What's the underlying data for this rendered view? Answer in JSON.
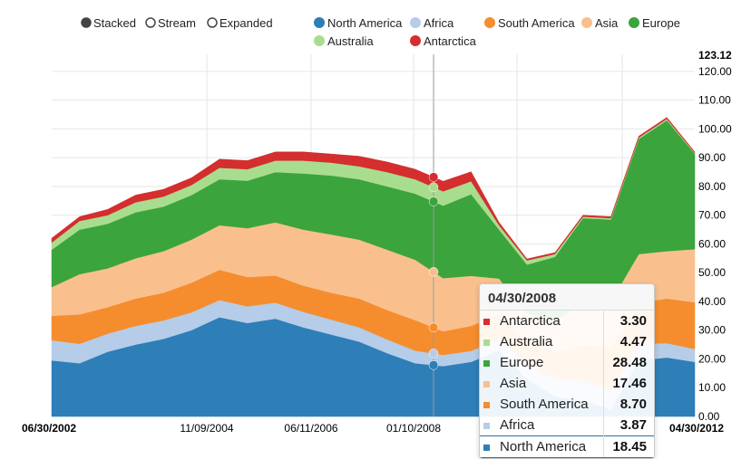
{
  "controls": [
    {
      "label": "Stacked",
      "selected": true
    },
    {
      "label": "Stream",
      "selected": false
    },
    {
      "label": "Expanded",
      "selected": false
    }
  ],
  "chart_data": {
    "type": "area",
    "stacked": true,
    "x_labels": [
      "06/30/2002",
      "11/09/2004",
      "06/11/2006",
      "01/10/2008",
      "04/30/2012"
    ],
    "x_label_bold": [
      true,
      false,
      false,
      false,
      true
    ],
    "x_range": [
      "06/30/2002",
      "04/30/2012"
    ],
    "ylim": [
      0,
      123.12
    ],
    "yticks": [
      0,
      10,
      20,
      30,
      40,
      50,
      60,
      70,
      80,
      90,
      100,
      110,
      120
    ],
    "ytick_labels": [
      "0.00",
      "10.00",
      "20.00",
      "30.00",
      "40.00",
      "50.00",
      "60.00",
      "70.00",
      "80.00",
      "90.00",
      "100.00",
      "110.00",
      "120.00"
    ],
    "ymax_label": "123.12",
    "grid": true,
    "cursor_date": "04/30/2008",
    "series": [
      {
        "name": "North America",
        "color": "#2e7eb8",
        "values": [
          19.5,
          18.5,
          22.5,
          25,
          27,
          30,
          34.5,
          32.5,
          34,
          31,
          28.5,
          26,
          22,
          18.5,
          17.5,
          19,
          23,
          13,
          7,
          5.5,
          2.5,
          19.5,
          20.5,
          19
        ]
      },
      {
        "name": "Africa",
        "color": "#b5cde8",
        "values": [
          7,
          6.8,
          6.3,
          6.5,
          6.4,
          6.2,
          6,
          5.8,
          5.6,
          5.4,
          5.2,
          5,
          4.8,
          4.4,
          3.9,
          3.8,
          4,
          5,
          6,
          7,
          6.5,
          5.8,
          5,
          4.5
        ]
      },
      {
        "name": "South America",
        "color": "#f58d2e",
        "values": [
          8.5,
          10.2,
          9.2,
          9.5,
          9.6,
          10.3,
          10.5,
          10.2,
          9.4,
          9.1,
          9.3,
          10,
          10.2,
          10.6,
          8.2,
          8.7,
          8.5,
          8.3,
          9.5,
          12.5,
          15,
          14.2,
          15.5,
          16.2
        ]
      },
      {
        "name": "Asia",
        "color": "#f9c08e",
        "values": [
          10,
          14,
          13.5,
          14,
          14.5,
          15,
          15.5,
          17,
          18.5,
          19.5,
          20.3,
          20.5,
          21,
          21,
          18.5,
          17.4,
          12.5,
          9.5,
          11,
          14,
          16,
          17,
          16.5,
          18.5
        ]
      },
      {
        "name": "Europe",
        "color": "#3ca43c",
        "values": [
          13,
          15.5,
          15.5,
          16,
          15.5,
          15.5,
          16,
          16.5,
          17.5,
          19.5,
          20.5,
          21,
          22,
          23,
          25.2,
          28.4,
          17,
          17,
          22,
          30,
          28.5,
          40,
          45.5,
          33.2
        ]
      },
      {
        "name": "Australia",
        "color": "#a8dd90",
        "values": [
          2.5,
          3,
          3,
          3.5,
          3.5,
          3.5,
          4,
          4,
          4,
          4.5,
          4.5,
          4.5,
          5,
          5,
          5,
          4.5,
          1.5,
          1.5,
          1,
          0.5,
          0.5,
          0.5,
          0.5,
          0.3
        ]
      },
      {
        "name": "Antarctica",
        "color": "#d42e2e",
        "values": [
          1.5,
          1.5,
          2,
          2.5,
          2.5,
          2.5,
          3,
          3,
          3,
          3,
          3,
          3.5,
          3.5,
          3.5,
          3.5,
          3.3,
          1,
          0.5,
          0.5,
          0.5,
          0.5,
          0.5,
          0.5,
          0.3
        ]
      }
    ]
  },
  "legend": {
    "items": [
      "North America",
      "Africa",
      "South America",
      "Asia",
      "Europe",
      "Australia",
      "Antarctica"
    ]
  },
  "tooltip": {
    "date": "04/30/2008",
    "rows": [
      {
        "name": "Antarctica",
        "value": "3.30",
        "color": "#d42e2e"
      },
      {
        "name": "Australia",
        "value": "4.47",
        "color": "#a8dd90"
      },
      {
        "name": "Europe",
        "value": "28.48",
        "color": "#3ca43c"
      },
      {
        "name": "Asia",
        "value": "17.46",
        "color": "#f9c08e"
      },
      {
        "name": "South America",
        "value": "8.70",
        "color": "#f58d2e"
      },
      {
        "name": "Africa",
        "value": "3.87",
        "color": "#b5cde8"
      },
      {
        "name": "North America",
        "value": "18.45",
        "color": "#2e7eb8"
      }
    ]
  }
}
